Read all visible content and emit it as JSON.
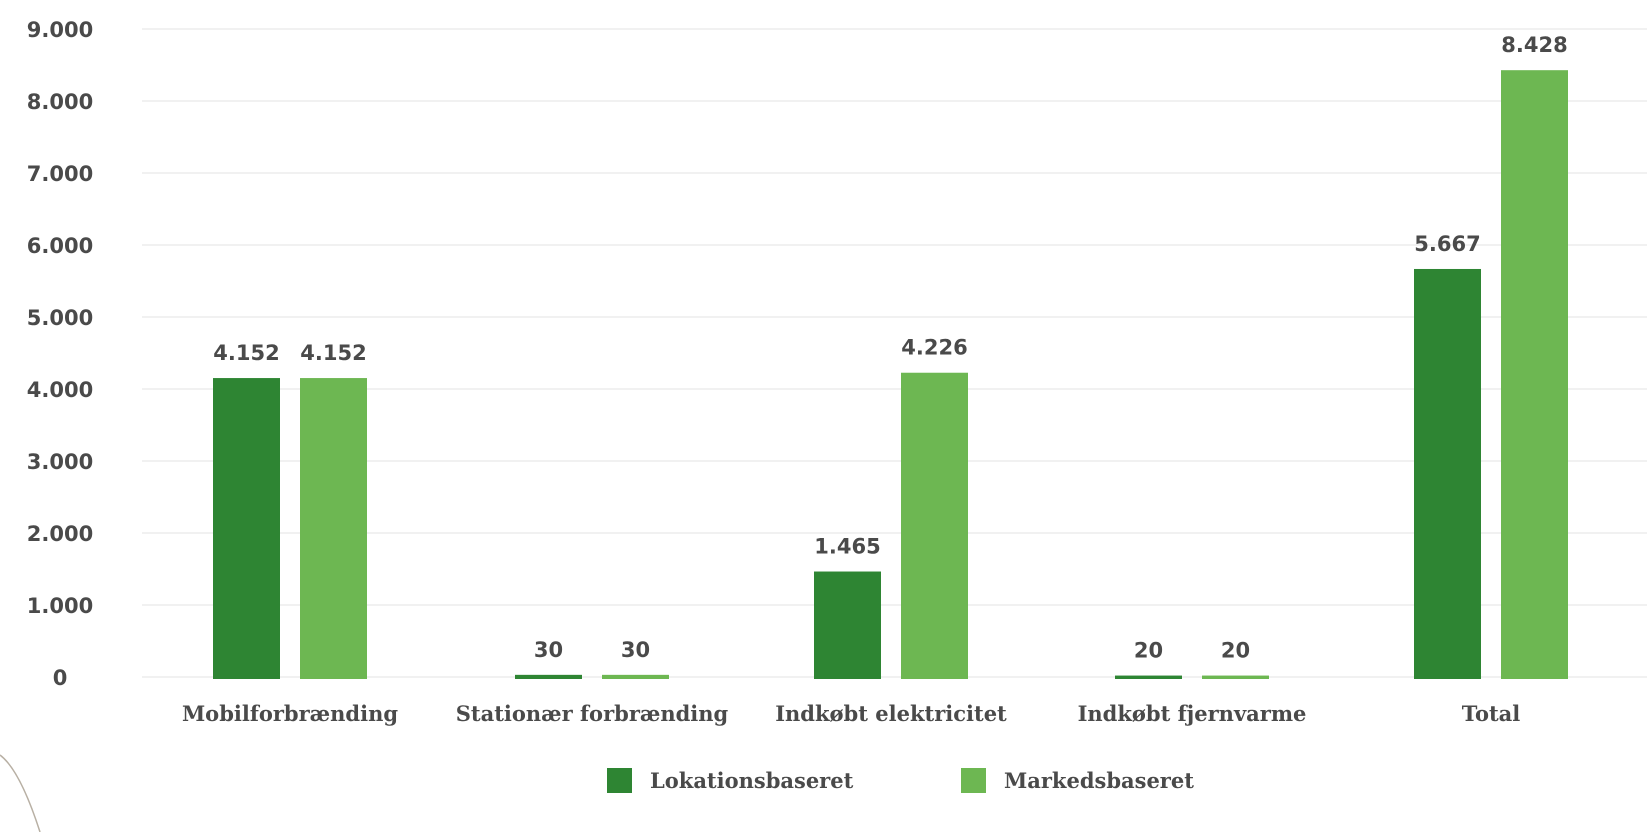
{
  "chart_data": {
    "type": "bar",
    "categories": [
      "Mobilforbrænding",
      "Stationær forbrænding",
      "Indkøbt elektricitet",
      "Indkøbt fjernvarme",
      "Total"
    ],
    "series": [
      {
        "name": "Lokationsbaseret",
        "color": "#2e8533",
        "values": [
          4152,
          30,
          1465,
          20,
          5667
        ],
        "labels": [
          "4.152",
          "30",
          "1.465",
          "20",
          "5.667"
        ]
      },
      {
        "name": "Markedsbaseret",
        "color": "#6db752",
        "values": [
          4152,
          30,
          4226,
          20,
          8428
        ],
        "labels": [
          "4.152",
          "30",
          "4.226",
          "20",
          "8.428"
        ]
      }
    ],
    "yticks": [
      0,
      1000,
      2000,
      3000,
      4000,
      5000,
      6000,
      7000,
      8000,
      9000
    ],
    "ytick_labels": [
      "0",
      "1.000",
      "2.000",
      "3.000",
      "4.000",
      "5.000",
      "6.000",
      "7.000",
      "8.000",
      "9.000"
    ],
    "ylim": [
      0,
      9000
    ],
    "grid": true,
    "legend_position": "bottom"
  }
}
